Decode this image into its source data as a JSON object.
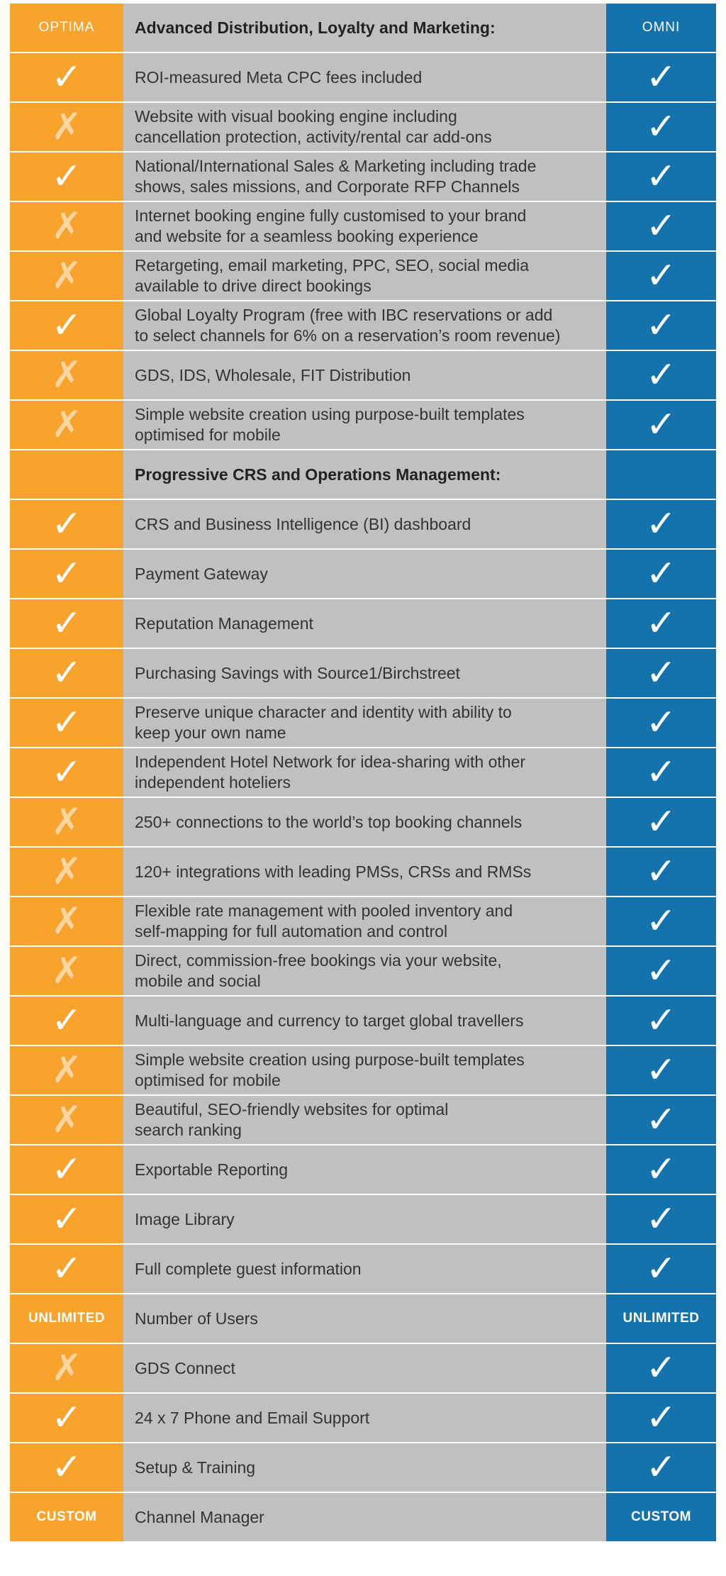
{
  "colors": {
    "optima_orange": "#f7a32d",
    "feature_gray": "#c0c0c1",
    "omni_blue": "#1473ad"
  },
  "icons": {
    "yes": "check-icon",
    "no": "cross-icon"
  },
  "header": {
    "optima_label": "OPTIMA",
    "section_title": "Advanced Distribution, Loyalty and Marketing:",
    "omni_label": "OMNI"
  },
  "rows": [
    {
      "text": "ROI-measured Meta CPC fees included",
      "optima": "check",
      "omni": "check"
    },
    {
      "text": "Website with visual booking engine including\ncancellation protection, activity/rental car add-ons",
      "optima": "cross",
      "omni": "check"
    },
    {
      "text": "National/International Sales & Marketing including trade\nshows, sales missions, and Corporate RFP Channels",
      "optima": "check",
      "omni": "check"
    },
    {
      "text": "Internet booking engine fully customised to your brand\nand website for a seamless booking experience",
      "optima": "cross",
      "omni": "check"
    },
    {
      "text": "Retargeting, email marketing, PPC, SEO, social media\navailable to drive direct bookings",
      "optima": "cross",
      "omni": "check"
    },
    {
      "text": "Global Loyalty Program (free with IBC reservations or add\nto select channels for 6% on a reservation’s room revenue)",
      "optima": "check",
      "omni": "check"
    },
    {
      "text": "GDS, IDS, Wholesale, FIT Distribution",
      "optima": "cross",
      "omni": "check"
    },
    {
      "text": "Simple website creation using purpose-built templates\noptimised for mobile",
      "optima": "cross",
      "omni": "check"
    },
    {
      "section": true,
      "text": "Progressive CRS and Operations Management:"
    },
    {
      "text": "CRS and Business Intelligence (BI) dashboard",
      "optima": "check",
      "omni": "check"
    },
    {
      "text": "Payment Gateway",
      "optima": "check",
      "omni": "check"
    },
    {
      "text": "Reputation Management",
      "optima": "check",
      "omni": "check"
    },
    {
      "text": "Purchasing Savings with Source1/Birchstreet",
      "optima": "check",
      "omni": "check"
    },
    {
      "text": "Preserve unique character and identity with ability to\nkeep your own name",
      "optima": "check",
      "omni": "check"
    },
    {
      "text": "Independent Hotel Network for idea-sharing with other\nindependent hoteliers",
      "optima": "check",
      "omni": "check"
    },
    {
      "text": "250+ connections to the world’s top booking channels",
      "optima": "cross",
      "omni": "check"
    },
    {
      "text": "120+ integrations with leading PMSs, CRSs and RMSs",
      "optima": "cross",
      "omni": "check"
    },
    {
      "text": "Flexible rate management with pooled inventory and\nself-mapping for full automation and control",
      "optima": "cross",
      "omni": "check"
    },
    {
      "text": "Direct, commission-free bookings via your website,\nmobile and social",
      "optima": "cross",
      "omni": "check"
    },
    {
      "text": "Multi-language and currency to target global travellers",
      "optima": "check",
      "omni": "check"
    },
    {
      "text": "Simple website creation using purpose-built templates\noptimised for mobile",
      "optima": "cross",
      "omni": "check"
    },
    {
      "text": "Beautiful, SEO-friendly websites for optimal\nsearch ranking",
      "optima": "cross",
      "omni": "check"
    },
    {
      "text": "Exportable Reporting",
      "optima": "check",
      "omni": "check"
    },
    {
      "text": "Image Library",
      "optima": "check",
      "omni": "check"
    },
    {
      "text": "Full complete guest information",
      "optima": "check",
      "omni": "check"
    },
    {
      "text": "Number of Users",
      "optima": "UNLIMITED",
      "omni": "UNLIMITED"
    },
    {
      "text": "GDS Connect",
      "optima": "cross",
      "omni": "check"
    },
    {
      "text": "24 x 7 Phone and Email Support",
      "optima": "check",
      "omni": "check"
    },
    {
      "text": "Setup & Training",
      "optima": "check",
      "omni": "check"
    },
    {
      "text": "Channel Manager",
      "optima": "CUSTOM",
      "omni": "CUSTOM"
    }
  ]
}
